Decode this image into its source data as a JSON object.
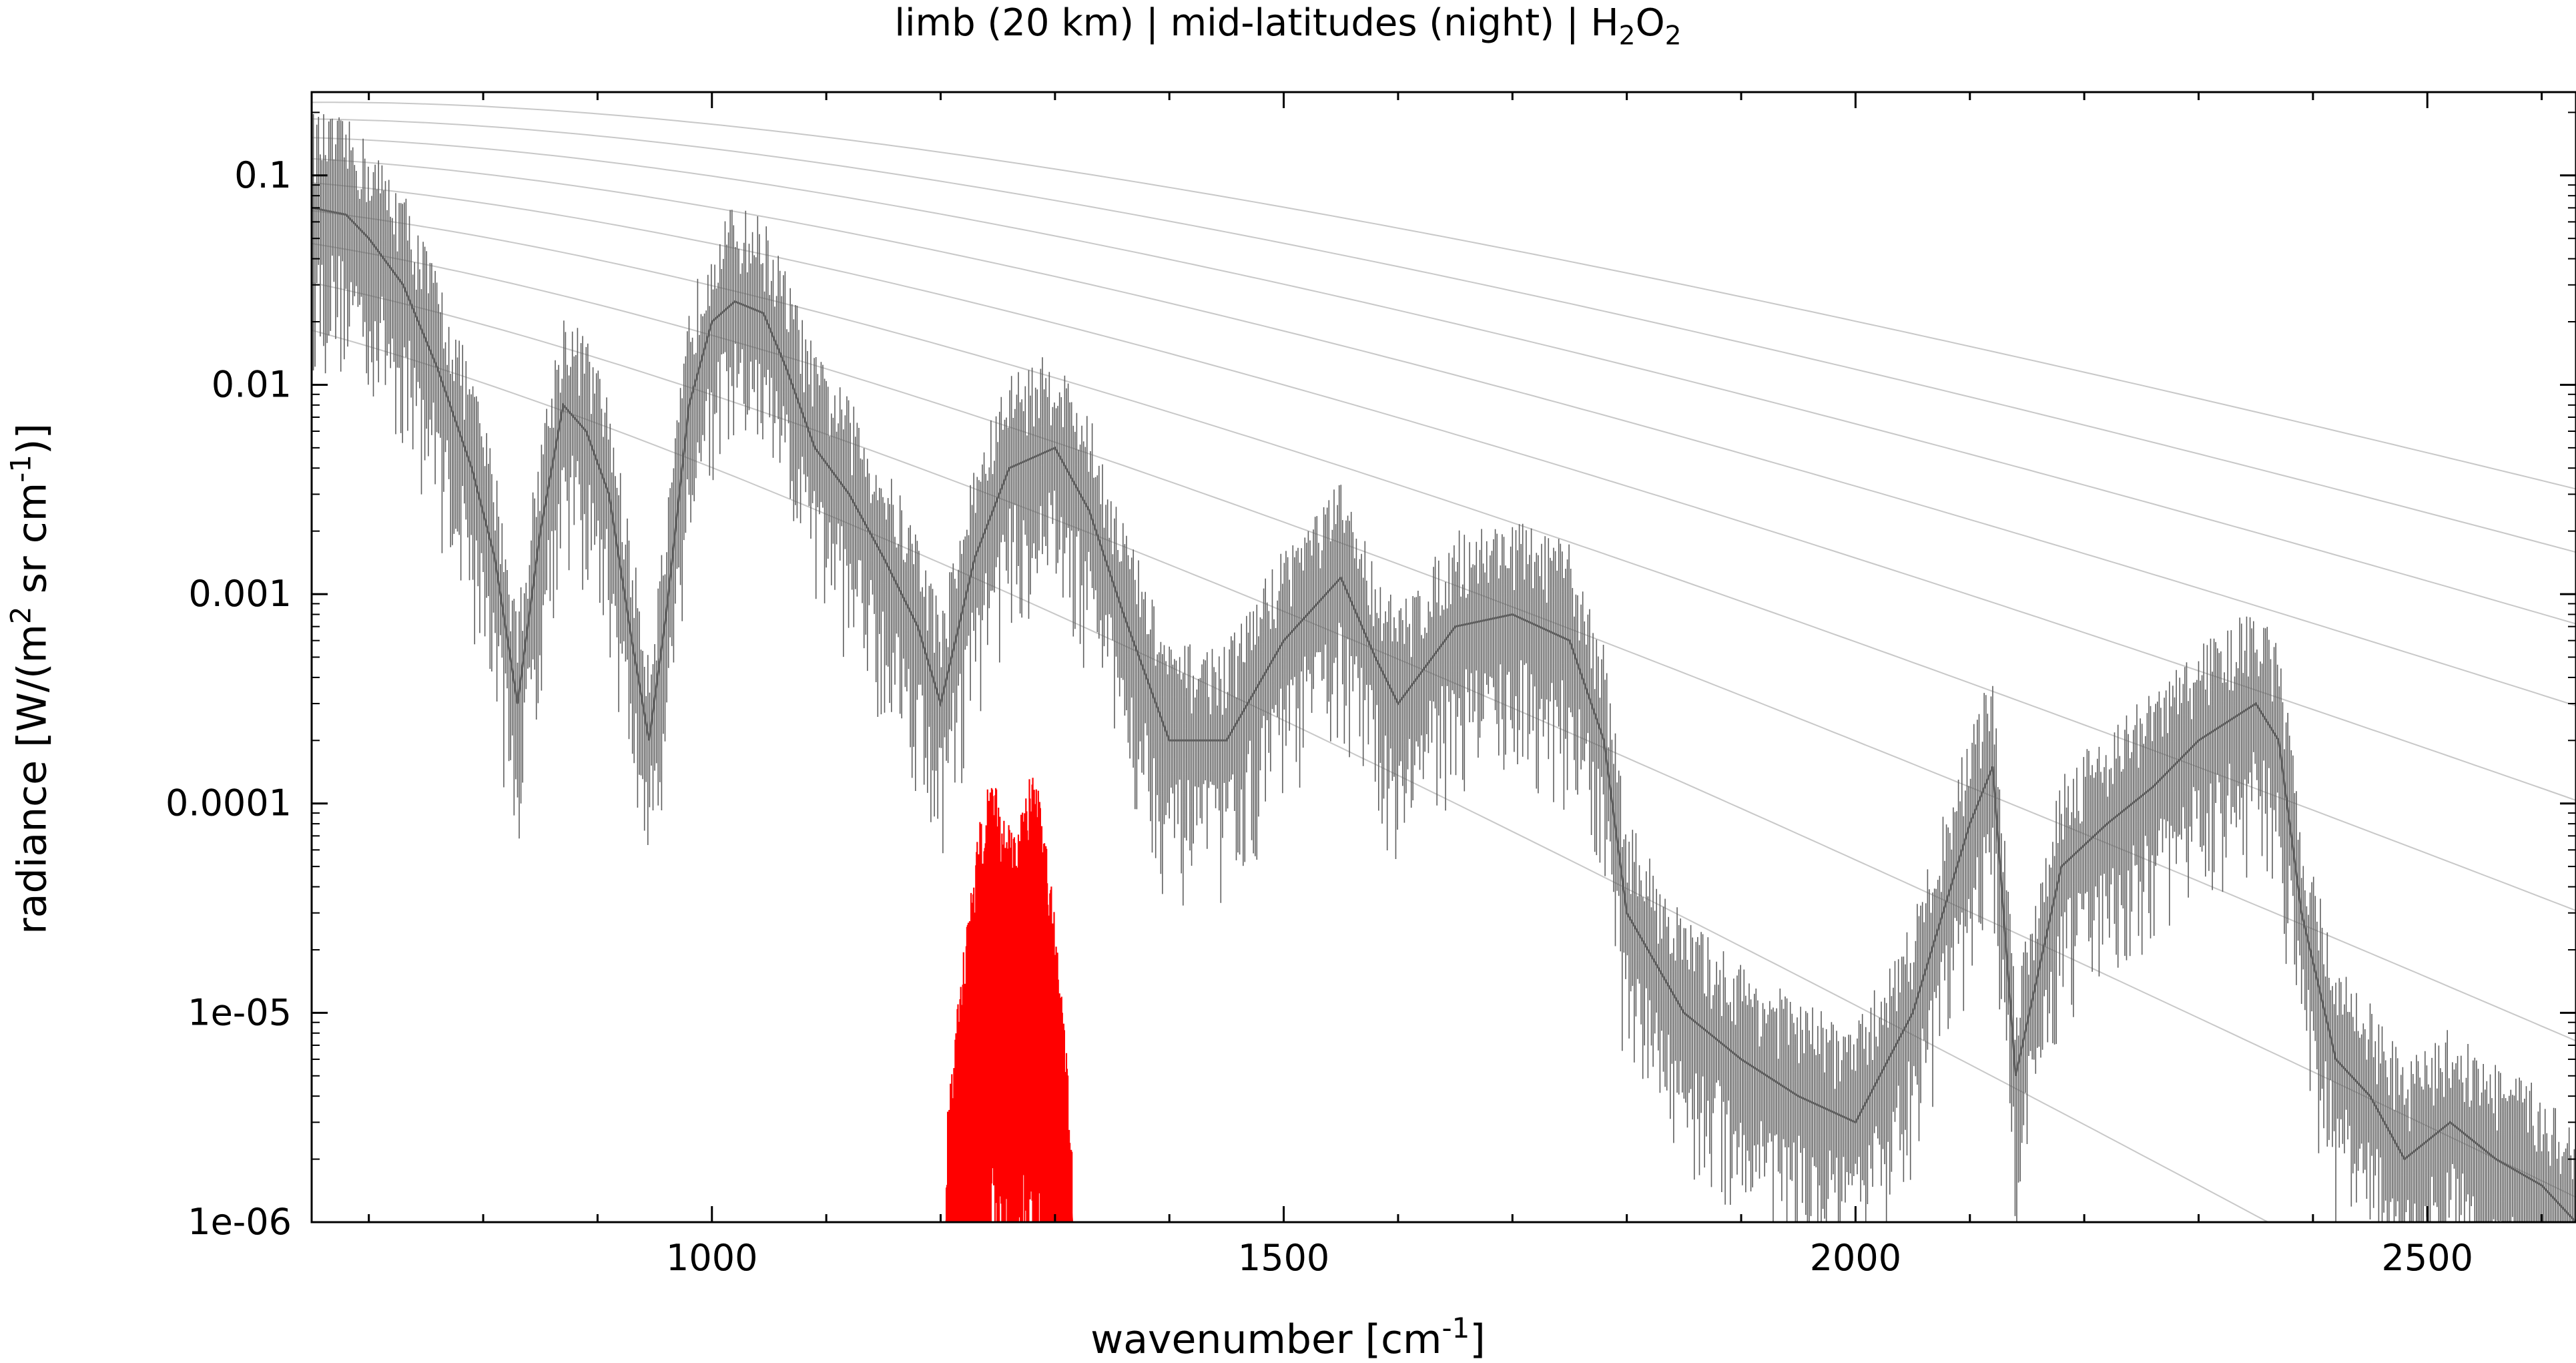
{
  "chart_data": {
    "type": "line",
    "title_prefix": "limb (20 km) | mid-latitudes (night) | H",
    "title_sub1": "2",
    "title_mid": "O",
    "title_sub2": "2",
    "xlabel_prefix": "wavenumber [cm",
    "xlabel_sup": "-1",
    "xlabel_suffix": "]",
    "ylabel_prefix": "radiance [W/(m",
    "ylabel_sup1": "2",
    "ylabel_mid": " sr cm",
    "ylabel_sup2": "-1",
    "ylabel_suffix": ")]",
    "x_scale": "linear",
    "y_scale": "log",
    "xlim": [
      650,
      2630
    ],
    "ylim": [
      1e-06,
      0.25
    ],
    "x_ticks": [
      1000,
      1500,
      2000,
      2500
    ],
    "x_tick_labels": [
      "1000",
      "1500",
      "2000",
      "2500"
    ],
    "y_ticks": [
      1e-06,
      1e-05,
      0.0001,
      0.001,
      0.01,
      0.1
    ],
    "y_tick_labels": [
      "1e-06",
      "1e-05",
      "0.0001",
      "0.001",
      "0.01",
      "0.1"
    ],
    "grid": false,
    "legend": "none",
    "colors": {
      "total_radiance": "#5f5f5f",
      "total_radiance_light": "#bdbdbd",
      "h2o2_contribution": "#ff0000",
      "planck_reference": "#c8c8c8"
    },
    "series": [
      {
        "role": "total_radiance",
        "x": [
          650,
          680,
          700,
          730,
          760,
          790,
          810,
          830,
          850,
          870,
          890,
          910,
          930,
          945,
          960,
          980,
          1000,
          1020,
          1045,
          1065,
          1090,
          1120,
          1150,
          1180,
          1200,
          1230,
          1260,
          1300,
          1330,
          1360,
          1400,
          1450,
          1500,
          1550,
          1580,
          1600,
          1650,
          1700,
          1750,
          1780,
          1800,
          1850,
          1900,
          1950,
          2000,
          2050,
          2100,
          2120,
          2140,
          2180,
          2220,
          2260,
          2300,
          2350,
          2370,
          2390,
          2420,
          2450,
          2480,
          2520,
          2560,
          2600,
          2630
        ],
        "y": [
          0.07,
          0.065,
          0.05,
          0.03,
          0.012,
          0.004,
          0.0015,
          0.0003,
          0.002,
          0.008,
          0.006,
          0.003,
          0.0006,
          0.0002,
          0.0008,
          0.008,
          0.02,
          0.025,
          0.022,
          0.012,
          0.005,
          0.003,
          0.0015,
          0.0007,
          0.0003,
          0.0015,
          0.004,
          0.005,
          0.0025,
          0.0008,
          0.0002,
          0.0002,
          0.0006,
          0.0012,
          0.0005,
          0.0003,
          0.0007,
          0.0008,
          0.0006,
          0.0002,
          3e-05,
          1e-05,
          6e-06,
          4e-06,
          3e-06,
          1e-05,
          8e-05,
          0.00015,
          5e-06,
          5e-05,
          8e-05,
          0.00012,
          0.0002,
          0.0003,
          0.0002,
          3e-05,
          6e-06,
          4e-06,
          2e-06,
          3e-06,
          2e-06,
          1.5e-06,
          1e-06
        ]
      },
      {
        "role": "h2o2_contribution",
        "x": [
          1205,
          1215,
          1225,
          1235,
          1245,
          1255,
          1265,
          1275,
          1285,
          1295,
          1305,
          1315
        ],
        "y": [
          1e-06,
          4e-06,
          1.2e-05,
          3e-05,
          5e-05,
          3e-05,
          2.5e-05,
          4.5e-05,
          5e-05,
          2e-05,
          5e-06,
          1e-06
        ]
      }
    ]
  }
}
